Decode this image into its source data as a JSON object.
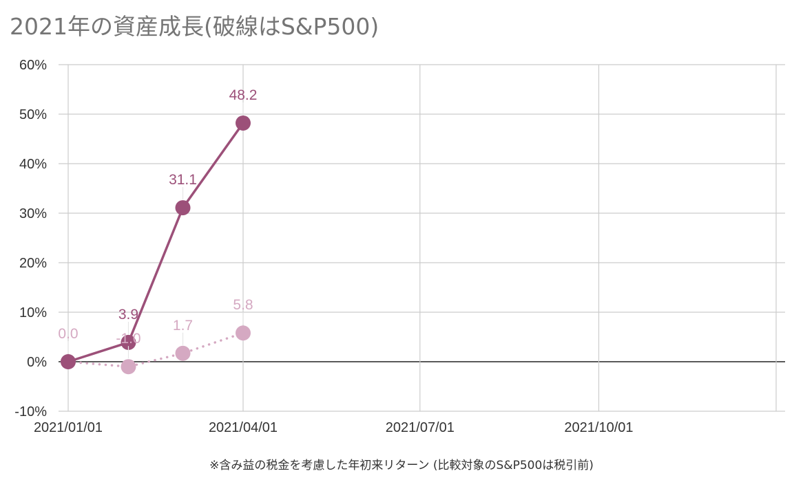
{
  "title": "2021年の資産成長(破線はS&P500)",
  "footnote": "※含み益の税金を考慮した年初来リターン (比較対象のS&P500は税引前)",
  "chart_data": {
    "type": "line",
    "title": "2021年の資産成長(破線はS&P500)",
    "xlabel": "",
    "ylabel": "",
    "x_ticks": [
      "2021/01/01",
      "2021/04/01",
      "2021/07/01",
      "2021/10/01"
    ],
    "y_ticks": [
      "60%",
      "50%",
      "40%",
      "30%",
      "20%",
      "10%",
      "0%",
      "-10%"
    ],
    "ylim": [
      -10,
      60
    ],
    "xlim": [
      "2021-01-01",
      "2021-12-31"
    ],
    "grid": true,
    "series": [
      {
        "name": "",
        "style": "solid",
        "color": "#9c5079",
        "x": [
          "2021-01-01",
          "2021-02-01",
          "2021-03-01",
          "2021-04-01"
        ],
        "values": [
          0.0,
          3.9,
          31.1,
          48.2
        ],
        "labels": [
          "",
          "3.9",
          "31.1",
          "48.2"
        ]
      },
      {
        "name": "S&P500",
        "style": "dotted",
        "color": "#d5a9c2",
        "x": [
          "2021-01-01",
          "2021-02-01",
          "2021-03-01",
          "2021-04-01"
        ],
        "values": [
          0.0,
          -1.0,
          1.7,
          5.8
        ],
        "labels": [
          "0.0",
          "-1.0",
          "1.7",
          "5.8"
        ]
      }
    ]
  }
}
